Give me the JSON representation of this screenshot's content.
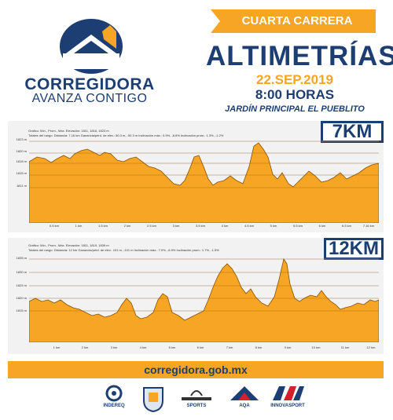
{
  "brand": {
    "line1": "CORREGIDORA",
    "line2": "AVANZA CONTIGO"
  },
  "event": {
    "ribbon": "CUARTA CARRERA",
    "title": "ALTIMETRÍAS",
    "date": "22.SEP.2019",
    "time": "8:00 HORAS",
    "place": "JARDÍN PRINCIPAL EL PUEBLITO"
  },
  "colors": {
    "navy": "#1d3e72",
    "orange": "#f6a524",
    "area": "#f6a524",
    "panel": "#f2f2f2"
  },
  "profiles": [
    {
      "tag": "7KM",
      "info1": "Gráfico: Mín., Prom., Máx. Elevación: 1811, 1816, 1823 m",
      "info2": "Totales del rango: Distancia: 7.16 km  Ganancia/pérd. de elev.: 50.3 m, -50.3 m  Inclinación máx.: 5.9%, -6.6%  Inclinación prom.: 1.3%, -1.2%",
      "y_ticks": [
        "1823 m",
        "1820 m",
        "1818 m",
        "1815 m",
        "1811 m"
      ],
      "x_ticks": [
        "0.5 km",
        "1 km",
        "1.5 km",
        "2 km",
        "2.5 km",
        "3 km",
        "3.5 km",
        "4 km",
        "4.5 km",
        "5 km",
        "5.5 km",
        "6 km",
        "6.5 km",
        "7.16 km"
      ]
    },
    {
      "tag": "12KM",
      "info1": "Gráfico: Mín., Prom., Máx. Elevación: 1811, 1819, 1839 m",
      "info2": "Totales del rango: Distancia: 12 km  Ganancia/pérd. de elev.: 101 m, -101 m  Inclinación máx.: 7.0%, -6.9%  Inclinación prom.: 1.7%, -1.5%",
      "y_ticks": [
        "1835 m",
        "1830 m",
        "1825 m",
        "1820 m",
        "1815 m"
      ],
      "x_ticks": [
        "1 km",
        "2 km",
        "3 km",
        "4 km",
        "5 km",
        "6 km",
        "7 km",
        "8 km",
        "9 km",
        "10 km",
        "11 km",
        "12 km"
      ]
    }
  ],
  "footer": {
    "url": "corregidora.gob.mx",
    "sponsors": [
      "INDEREQ",
      "",
      "SPORTS",
      "AQA",
      "INNOVASPORT"
    ]
  }
}
